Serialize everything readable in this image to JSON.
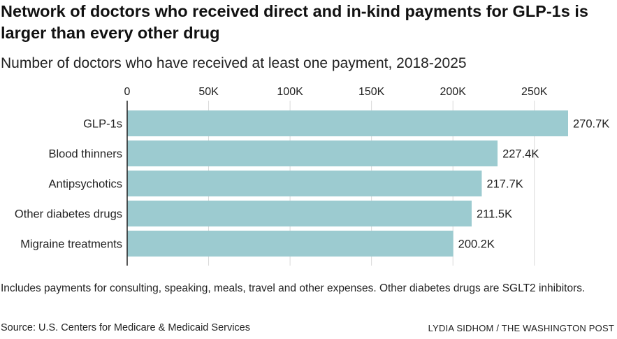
{
  "header": {
    "title": "Network of doctors who received direct and in-kind payments for GLP-1s is larger than every other drug",
    "subtitle": "Number of doctors who have received at least one payment, 2018-2025"
  },
  "chart_data": {
    "type": "bar",
    "orientation": "horizontal",
    "categories": [
      "GLP-1s",
      "Blood thinners",
      "Antipsychotics",
      "Other diabetes drugs",
      "Migraine treatments"
    ],
    "values": [
      270700,
      227400,
      217700,
      211500,
      200200
    ],
    "value_labels": [
      "270.7K",
      "227.4K",
      "217.7K",
      "211.5K",
      "200.2K"
    ],
    "xticks": [
      0,
      50000,
      100000,
      150000,
      200000,
      250000
    ],
    "xtick_labels": [
      "0",
      "50K",
      "100K",
      "150K",
      "200K",
      "250K"
    ],
    "xlim": [
      0,
      270700
    ],
    "axis_position": "top",
    "grid": true,
    "bar_color": "#9ccbd0",
    "grid_color": "#d9d9d9"
  },
  "footer": {
    "note": "Includes payments for consulting, speaking, meals, travel and other expenses. Other diabetes drugs are SGLT2 inhibitors.",
    "source": "Source: U.S. Centers for Medicare & Medicaid Services",
    "credit": "LYDIA SIDHOM / THE WASHINGTON POST"
  }
}
